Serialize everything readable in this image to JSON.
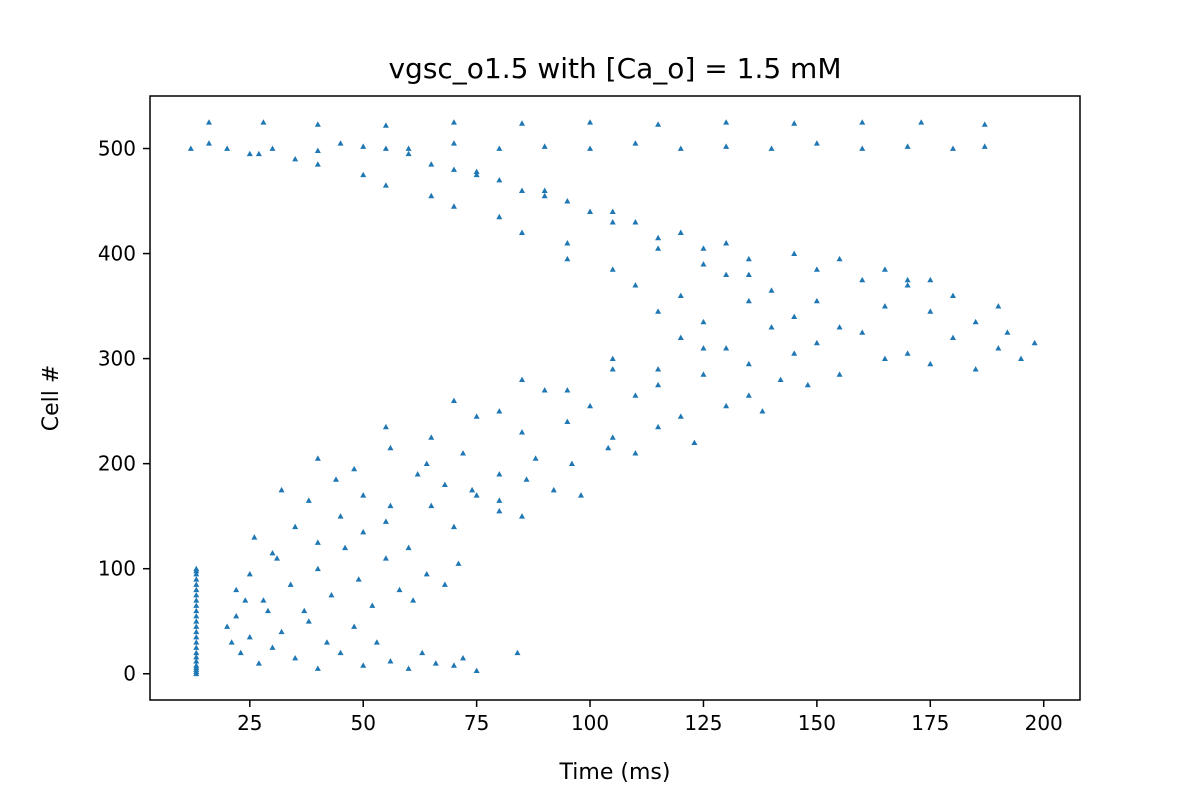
{
  "chart_data": {
    "type": "scatter",
    "title": "vgsc_o1.5 with [Ca_o] = 1.5 mM",
    "xlabel": "Time (ms)",
    "ylabel": "Cell #",
    "xlim": [
      3,
      208
    ],
    "ylim": [
      -25,
      550
    ],
    "xticks": [
      25,
      50,
      75,
      100,
      125,
      150,
      175,
      200
    ],
    "yticks": [
      0,
      100,
      200,
      300,
      400,
      500
    ],
    "xtick_labels": [
      "25",
      "50",
      "75",
      "100",
      "125",
      "150",
      "175",
      "200"
    ],
    "ytick_labels": [
      "0",
      "100",
      "200",
      "300",
      "400",
      "500"
    ],
    "grid": false,
    "legend": "none",
    "marker": "triangle",
    "color": "#1f77b4",
    "series": [
      {
        "values_note": "",
        "x": [
          13.2,
          13.2,
          13.2,
          13.2,
          13.2,
          13.2,
          13.2,
          13.2,
          13.2,
          13.2,
          13.2,
          13.2,
          13.2,
          13.2,
          13.2,
          13.2,
          13.2,
          13.2,
          13.2,
          13.2,
          13.2,
          13.2,
          13.2,
          13.2,
          13.2,
          20,
          21,
          22,
          23,
          24,
          25,
          27,
          29,
          30,
          32,
          35,
          38,
          40,
          42,
          45,
          48,
          50,
          53,
          56,
          60,
          63,
          66,
          70,
          72,
          75,
          84,
          22,
          25,
          28,
          31,
          34,
          37,
          40,
          43,
          46,
          49,
          52,
          55,
          58,
          61,
          64,
          68,
          71,
          26,
          30,
          35,
          40,
          45,
          50,
          55,
          60,
          65,
          70,
          75,
          80,
          85,
          32,
          38,
          44,
          50,
          56,
          62,
          68,
          74,
          80,
          86,
          92,
          98,
          40,
          48,
          56,
          64,
          72,
          80,
          88,
          96,
          104,
          110,
          55,
          65,
          75,
          85,
          95,
          105,
          115,
          123,
          70,
          80,
          90,
          100,
          110,
          120,
          130,
          138,
          85,
          95,
          105,
          115,
          125,
          135,
          142,
          148,
          105,
          115,
          125,
          135,
          145,
          155,
          165,
          175,
          185,
          120,
          130,
          140,
          150,
          160,
          170,
          180,
          190,
          195,
          198,
          115,
          125,
          135,
          145,
          155,
          165,
          175,
          185,
          192,
          110,
          120,
          130,
          140,
          150,
          160,
          170,
          180,
          190,
          95,
          105,
          115,
          125,
          135,
          145,
          155,
          165,
          175,
          85,
          95,
          105,
          115,
          125,
          135,
          150,
          170,
          70,
          80,
          90,
          100,
          110,
          120,
          130,
          55,
          65,
          75,
          85,
          95,
          105,
          40,
          50,
          60,
          70,
          80,
          90,
          27,
          35,
          45,
          55,
          65,
          75,
          12,
          16,
          20,
          25,
          30,
          40,
          50,
          60,
          70,
          80,
          90,
          100,
          110,
          120,
          130,
          140,
          150,
          160,
          170,
          180,
          187,
          16,
          28,
          40,
          55,
          70,
          85,
          100,
          115,
          130,
          145,
          160,
          173,
          187
        ],
        "y": [
          0,
          4,
          8,
          12,
          16,
          20,
          25,
          30,
          35,
          40,
          45,
          50,
          55,
          60,
          65,
          70,
          75,
          80,
          85,
          90,
          95,
          98,
          100,
          2,
          6,
          45,
          30,
          55,
          20,
          70,
          35,
          10,
          60,
          25,
          40,
          15,
          50,
          5,
          30,
          20,
          45,
          8,
          30,
          12,
          5,
          20,
          10,
          8,
          15,
          3,
          20,
          80,
          95,
          70,
          110,
          85,
          60,
          100,
          75,
          120,
          90,
          65,
          110,
          80,
          70,
          95,
          85,
          105,
          130,
          115,
          140,
          125,
          150,
          135,
          145,
          120,
          160,
          140,
          170,
          155,
          150,
          175,
          165,
          185,
          170,
          160,
          190,
          180,
          175,
          165,
          185,
          175,
          170,
          205,
          195,
          215,
          200,
          210,
          190,
          205,
          200,
          215,
          210,
          235,
          225,
          245,
          230,
          240,
          225,
          235,
          220,
          260,
          250,
          270,
          255,
          265,
          245,
          255,
          250,
          280,
          270,
          290,
          275,
          285,
          265,
          280,
          275,
          300,
          290,
          310,
          295,
          305,
          285,
          300,
          295,
          290,
          320,
          310,
          330,
          315,
          325,
          305,
          320,
          310,
          300,
          315,
          345,
          335,
          355,
          340,
          330,
          350,
          345,
          335,
          325,
          370,
          360,
          380,
          365,
          355,
          375,
          370,
          360,
          350,
          395,
          385,
          405,
          390,
          380,
          400,
          395,
          385,
          375,
          420,
          410,
          430,
          415,
          405,
          395,
          385,
          375,
          445,
          435,
          455,
          440,
          430,
          420,
          410,
          465,
          455,
          475,
          460,
          450,
          440,
          485,
          475,
          495,
          480,
          470,
          460,
          495,
          490,
          505,
          500,
          485,
          478,
          500,
          505,
          500,
          495,
          500,
          498,
          502,
          500,
          505,
          500,
          502,
          500,
          505,
          500,
          502,
          500,
          505,
          500,
          502,
          500,
          502,
          525,
          525,
          523,
          522,
          525,
          524,
          525,
          523,
          525,
          524,
          525,
          525,
          523
        ]
      }
    ]
  }
}
